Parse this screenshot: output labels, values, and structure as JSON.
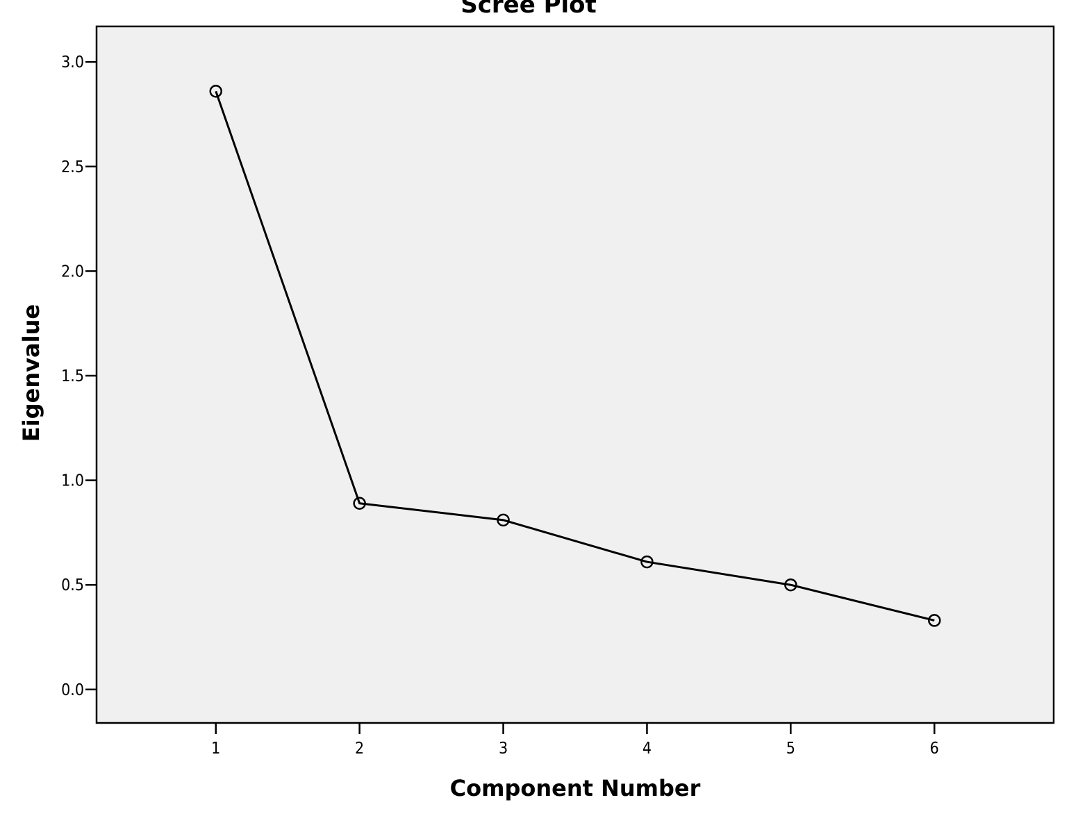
{
  "chart_data": {
    "type": "line",
    "title": "Scree Plot",
    "xlabel": "Component Number",
    "ylabel": "Eigenvalue",
    "x": [
      1,
      2,
      3,
      4,
      5,
      6
    ],
    "series": [
      {
        "values": [
          2.86,
          0.89,
          0.81,
          0.61,
          0.5,
          0.33
        ]
      }
    ],
    "xticks": [
      "1",
      "2",
      "3",
      "4",
      "5",
      "6"
    ],
    "yticks": [
      "0.0",
      "0.5",
      "1.0",
      "1.5",
      "2.0",
      "2.5",
      "3.0"
    ],
    "xlim": [
      0.17,
      6.83
    ],
    "ylim": [
      -0.16,
      3.17
    ],
    "grid": false,
    "marker": "open-circle",
    "colors": {
      "plot_background": "#f0f0f0",
      "line": "#000000",
      "frame": "#000000"
    }
  }
}
